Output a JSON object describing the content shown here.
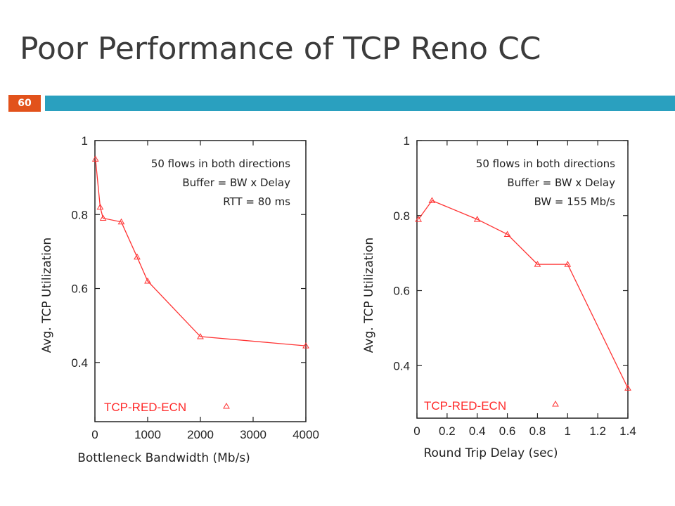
{
  "slide": {
    "title": "Poor Performance of TCP Reno CC",
    "page_number": "60"
  },
  "colors": {
    "accent_bar": "#2aa0bf",
    "page_badge": "#e2521b",
    "series": "#ff3333"
  },
  "chart_data": [
    {
      "type": "line",
      "xlabel": "Bottleneck Bandwidth (Mb/s)",
      "ylabel": "Avg. TCP Utilization",
      "xlim": [
        0,
        4000
      ],
      "ylim": [
        0.24,
        1.0
      ],
      "xticks": [
        "0",
        "1000",
        "2000",
        "3000",
        "4000"
      ],
      "yticks": [
        "1",
        "0.8",
        "0.6",
        "0.4"
      ],
      "annotations": [
        "50 flows in both directions",
        "Buffer = BW x Delay",
        "RTT = 80 ms"
      ],
      "series": [
        {
          "name": "TCP-RED-ECN",
          "x": [
            10,
            100,
            155,
            500,
            800,
            1000,
            2000,
            4000
          ],
          "y": [
            0.95,
            0.82,
            0.79,
            0.78,
            0.685,
            0.62,
            0.47,
            0.445
          ]
        }
      ]
    },
    {
      "type": "line",
      "xlabel": "Round Trip Delay (sec)",
      "ylabel": "Avg. TCP Utilization",
      "xlim": [
        0,
        1.4
      ],
      "ylim": [
        0.26,
        1.0
      ],
      "xticks": [
        "0",
        "0.2",
        "0.4",
        "0.6",
        "0.8",
        "1",
        "1.2",
        "1.4"
      ],
      "yticks": [
        "1",
        "0.8",
        "0.6",
        "0.4"
      ],
      "annotations": [
        "50 flows in both directions",
        "Buffer = BW x Delay",
        "BW = 155 Mb/s"
      ],
      "series": [
        {
          "name": "TCP-RED-ECN",
          "x": [
            0.01,
            0.1,
            0.4,
            0.6,
            0.8,
            1.0,
            1.4
          ],
          "y": [
            0.79,
            0.84,
            0.79,
            0.75,
            0.67,
            0.67,
            0.34
          ]
        }
      ]
    }
  ]
}
